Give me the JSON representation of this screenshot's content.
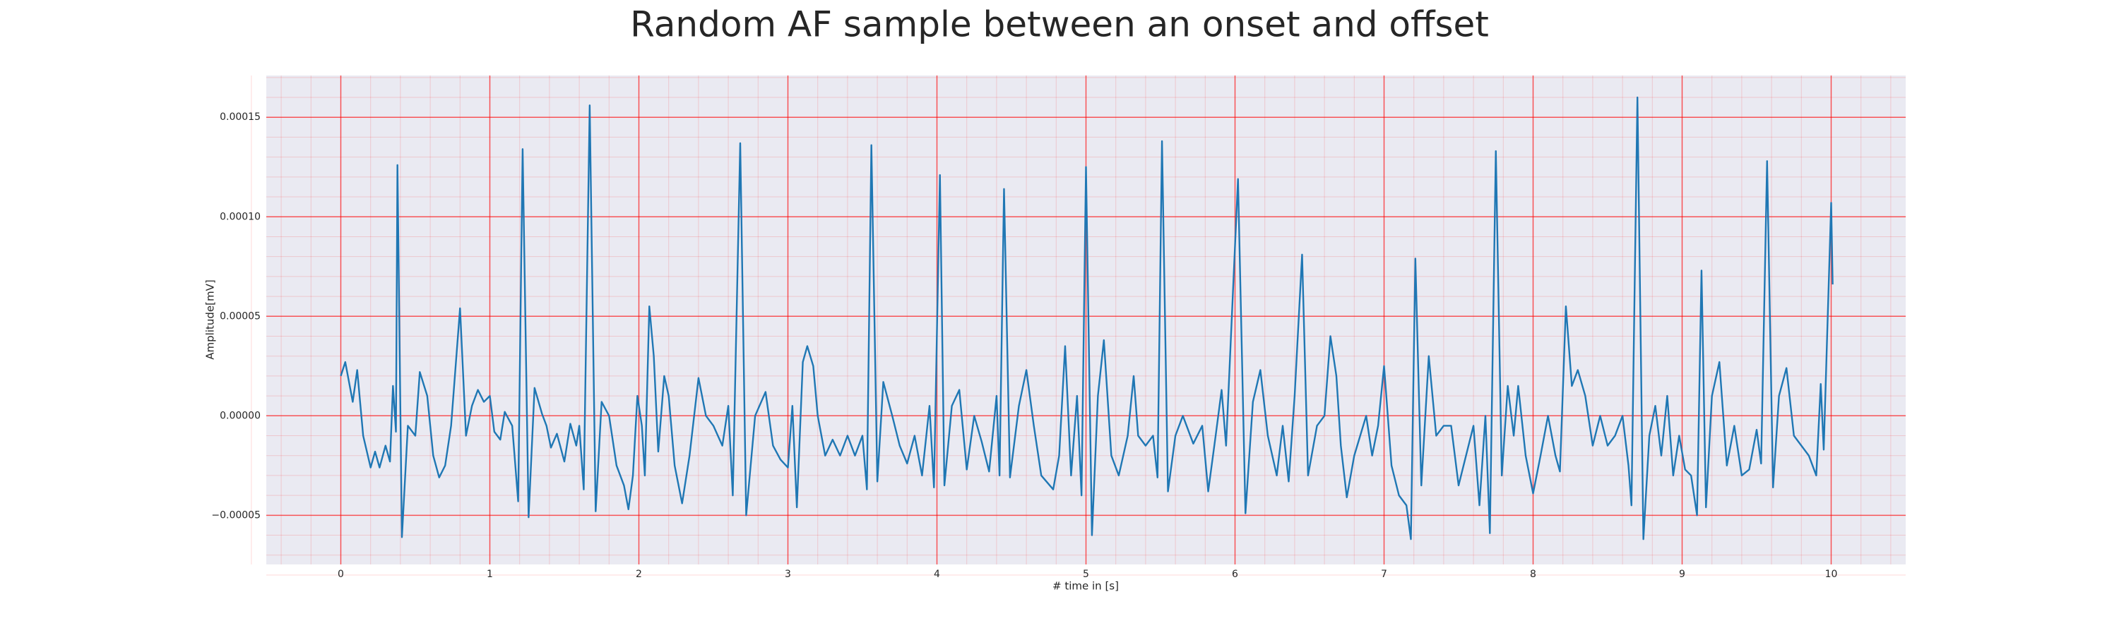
{
  "chart_data": {
    "type": "line",
    "title": "Random AF sample between an onset and offset",
    "xlabel": "# time in [s]",
    "ylabel": "Amplitude[mV]",
    "color": "#1f77b4",
    "grid": true,
    "minor_grid": true,
    "grid_color": "#ff0000",
    "background": "#eaeaf2",
    "xlim": [
      -0.5,
      10.5
    ],
    "xticks": [
      0,
      1,
      2,
      3,
      4,
      5,
      6,
      7,
      8,
      9,
      10
    ],
    "ylim": [
      -7.47e-05,
      0.000171
    ],
    "yticks": [
      {
        "value": -5e-05,
        "label": "−0.00005"
      },
      {
        "value": 0,
        "label": "0.00000"
      },
      {
        "value": 5e-05,
        "label": "0.00005"
      },
      {
        "value": 0.0001,
        "label": "0.00010"
      },
      {
        "value": 0.00015,
        "label": "0.00015"
      }
    ],
    "x": [
      0,
      0.03,
      0.08,
      0.11,
      0.15,
      0.2,
      0.23,
      0.26,
      0.3,
      0.33,
      0.35,
      0.37,
      0.38,
      0.41,
      0.45,
      0.5,
      0.53,
      0.58,
      0.62,
      0.66,
      0.7,
      0.74,
      0.8,
      0.84,
      0.88,
      0.92,
      0.96,
      1.0,
      1.03,
      1.07,
      1.1,
      1.15,
      1.19,
      1.22,
      1.26,
      1.3,
      1.35,
      1.38,
      1.41,
      1.45,
      1.5,
      1.54,
      1.58,
      1.6,
      1.63,
      1.67,
      1.71,
      1.75,
      1.8,
      1.85,
      1.9,
      1.93,
      1.96,
      1.99,
      2.02,
      2.04,
      2.07,
      2.1,
      2.13,
      2.17,
      2.2,
      2.24,
      2.29,
      2.34,
      2.4,
      2.45,
      2.5,
      2.56,
      2.6,
      2.63,
      2.68,
      2.72,
      2.78,
      2.85,
      2.9,
      2.95,
      3.0,
      3.03,
      3.06,
      3.1,
      3.13,
      3.17,
      3.2,
      3.25,
      3.3,
      3.35,
      3.4,
      3.45,
      3.5,
      3.53,
      3.56,
      3.6,
      3.64,
      3.7,
      3.75,
      3.8,
      3.85,
      3.9,
      3.95,
      3.98,
      4.02,
      4.05,
      4.1,
      4.15,
      4.2,
      4.25,
      4.3,
      4.35,
      4.4,
      4.42,
      4.45,
      4.49,
      4.55,
      4.6,
      4.65,
      4.7,
      4.78,
      4.82,
      4.86,
      4.9,
      4.94,
      4.97,
      5.0,
      5.04,
      5.08,
      5.12,
      5.17,
      5.22,
      5.28,
      5.32,
      5.35,
      5.4,
      5.45,
      5.48,
      5.51,
      5.55,
      5.6,
      5.65,
      5.72,
      5.78,
      5.82,
      5.87,
      5.91,
      5.94,
      6.02,
      6.07,
      6.12,
      6.17,
      6.22,
      6.28,
      6.32,
      6.36,
      6.4,
      6.45,
      6.49,
      6.55,
      6.6,
      6.64,
      6.68,
      6.71,
      6.75,
      6.8,
      6.84,
      6.88,
      6.92,
      6.96,
      7.0,
      7.05,
      7.1,
      7.15,
      7.18,
      7.21,
      7.25,
      7.3,
      7.35,
      7.4,
      7.45,
      7.5,
      7.55,
      7.6,
      7.64,
      7.68,
      7.71,
      7.75,
      7.79,
      7.83,
      7.87,
      7.9,
      7.95,
      8.0,
      8.05,
      8.1,
      8.15,
      8.18,
      8.22,
      8.26,
      8.3,
      8.35,
      8.4,
      8.45,
      8.5,
      8.55,
      8.6,
      8.64,
      8.66,
      8.7,
      8.74,
      8.78,
      8.82,
      8.86,
      8.9,
      8.94,
      8.98,
      9.02,
      9.06,
      9.1,
      9.13,
      9.16,
      9.2,
      9.25,
      9.3,
      9.35,
      9.4,
      9.45,
      9.5,
      9.53,
      9.57,
      9.61,
      9.65,
      9.7,
      9.75,
      9.8,
      9.85,
      9.9,
      9.93,
      9.95,
      10.0,
      10.01
    ],
    "values": [
      2e-05,
      2.7e-05,
      7e-06,
      2.3e-05,
      -1e-05,
      -2.6e-05,
      -1.8e-05,
      -2.6e-05,
      -1.5e-05,
      -2.3e-05,
      1.5e-05,
      -8e-06,
      0.000126,
      -6.1e-05,
      -5e-06,
      -1e-05,
      2.2e-05,
      1e-05,
      -2e-05,
      -3.1e-05,
      -2.5e-05,
      -5e-06,
      5.4e-05,
      -1e-05,
      5e-06,
      1.3e-05,
      7e-06,
      1e-05,
      -8e-06,
      -1.2e-05,
      2e-06,
      -5e-06,
      -4.3e-05,
      0.000134,
      -5.1e-05,
      1.4e-05,
      1e-06,
      -5e-06,
      -1.6e-05,
      -9e-06,
      -2.3e-05,
      -4e-06,
      -1.5e-05,
      -5e-06,
      -3.7e-05,
      0.000156,
      -4.8e-05,
      7e-06,
      0,
      -2.5e-05,
      -3.5e-05,
      -4.7e-05,
      -3e-05,
      1e-05,
      -5e-06,
      -3e-05,
      5.5e-05,
      3e-05,
      -1.8e-05,
      2e-05,
      1e-05,
      -2.5e-05,
      -4.4e-05,
      -2e-05,
      1.9e-05,
      0,
      -5e-06,
      -1.5e-05,
      5e-06,
      -4e-05,
      0.000137,
      -5e-05,
      0,
      1.2e-05,
      -1.5e-05,
      -2.2e-05,
      -2.6e-05,
      5e-06,
      -4.6e-05,
      2.7e-05,
      3.5e-05,
      2.5e-05,
      0,
      -2e-05,
      -1.2e-05,
      -2e-05,
      -1e-05,
      -2e-05,
      -1e-05,
      -3.7e-05,
      0.000136,
      -3.3e-05,
      1.7e-05,
      0,
      -1.5e-05,
      -2.4e-05,
      -1e-05,
      -3e-05,
      5e-06,
      -3.6e-05,
      0.000121,
      -3.5e-05,
      5e-06,
      1.3e-05,
      -2.7e-05,
      0,
      -1.3e-05,
      -2.8e-05,
      1e-05,
      -3e-05,
      0.000114,
      -3.1e-05,
      5e-06,
      2.3e-05,
      -5e-06,
      -3e-05,
      -3.7e-05,
      -2e-05,
      3.5e-05,
      -3e-05,
      1e-05,
      -4e-05,
      0.000125,
      -6e-05,
      1e-05,
      3.8e-05,
      -2e-05,
      -3e-05,
      -1e-05,
      2e-05,
      -1e-05,
      -1.5e-05,
      -1e-05,
      -3.1e-05,
      0.000138,
      -3.8e-05,
      -1e-05,
      0,
      -1.4e-05,
      -5e-06,
      -3.8e-05,
      -1e-05,
      1.3e-05,
      -1.5e-05,
      0.000119,
      -4.9e-05,
      7e-06,
      2.3e-05,
      -1e-05,
      -3e-05,
      -5e-06,
      -3.3e-05,
      1e-05,
      8.1e-05,
      -3e-05,
      -5e-06,
      0,
      4e-05,
      2e-05,
      -1.5e-05,
      -4.1e-05,
      -2e-05,
      -1e-05,
      0,
      -2e-05,
      -5e-06,
      2.5e-05,
      -2.5e-05,
      -4e-05,
      -4.5e-05,
      -6.2e-05,
      7.9e-05,
      -3.5e-05,
      3e-05,
      -1e-05,
      -5e-06,
      -5e-06,
      -3.5e-05,
      -2e-05,
      -5e-06,
      -4.5e-05,
      0,
      -5.9e-05,
      0.000133,
      -3e-05,
      1.5e-05,
      -1e-05,
      1.5e-05,
      -2e-05,
      -3.9e-05,
      -2e-05,
      0,
      -2e-05,
      -2.8e-05,
      5.5e-05,
      1.5e-05,
      2.3e-05,
      1e-05,
      -1.5e-05,
      0,
      -1.5e-05,
      -1e-05,
      0,
      -2.5e-05,
      -4.5e-05,
      0.00016,
      -6.2e-05,
      -1e-05,
      5e-06,
      -2e-05,
      1e-05,
      -3e-05,
      -1e-05,
      -2.7e-05,
      -3e-05,
      -5e-05,
      7.3e-05,
      -4.6e-05,
      1e-05,
      2.7e-05,
      -2.5e-05,
      -5e-06,
      -3e-05,
      -2.7e-05,
      -7e-06,
      -2.4e-05,
      0.000128,
      -3.6e-05,
      1e-05,
      2.4e-05,
      -1e-05,
      -1.5e-05,
      -2e-05,
      -3e-05,
      1.6e-05,
      -1.7e-05,
      0.000107,
      6.6e-05
    ]
  }
}
